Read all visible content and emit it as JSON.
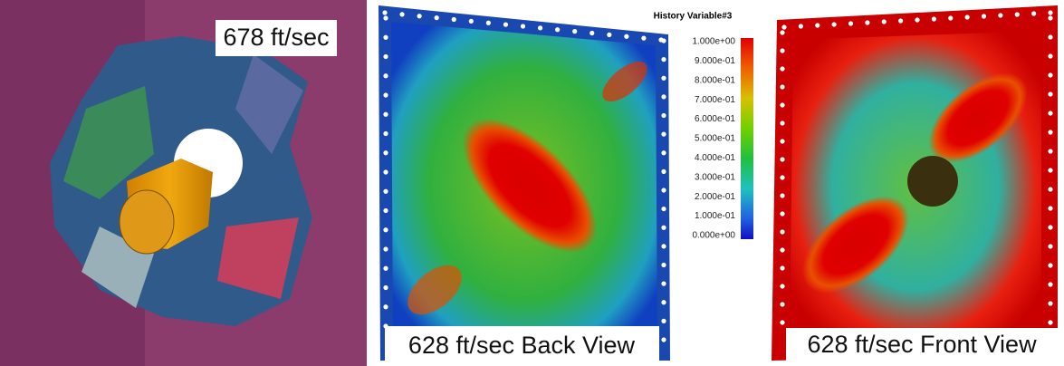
{
  "panels": [
    {
      "label": "678 ft/sec"
    },
    {
      "label": "628 ft/sec Back View"
    },
    {
      "label": "628 ft/sec Front View"
    }
  ],
  "colorbar": {
    "title": "History Variable#3",
    "labels": [
      "1.000e+00",
      "9.000e-01",
      "8.000e-01",
      "7.000e-01",
      "6.000e-01",
      "5.000e-01",
      "4.000e-01",
      "3.000e-01",
      "2.000e-01",
      "1.000e-01",
      "0.000e+00"
    ]
  }
}
